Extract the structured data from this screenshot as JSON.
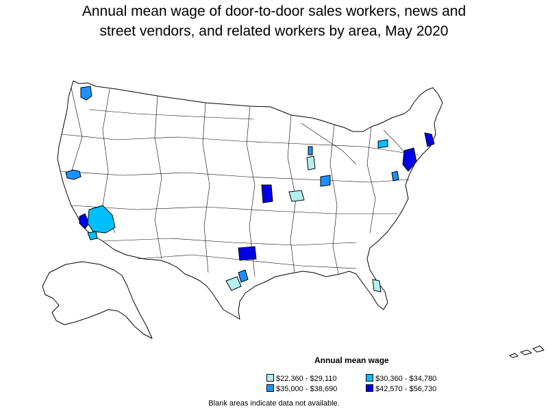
{
  "title_line1": "Annual mean wage of door-to-door sales workers, news and",
  "title_line2": "street vendors, and related workers by area, May 2020",
  "legend": {
    "title": "Annual mean wage",
    "items": [
      {
        "range": "$22,360 - $29,110",
        "color": "#b3f0f0"
      },
      {
        "range": "$30,360 - $34,780",
        "color": "#00bfff"
      },
      {
        "range": "$35,000 - $38,690",
        "color": "#1e90ff"
      },
      {
        "range": "$42,570 - $56,730",
        "color": "#0000e6"
      }
    ]
  },
  "note": "Blank areas indicate data not available.",
  "colors": {
    "tier1": "#b3f0f0",
    "tier2": "#00bfff",
    "tier3": "#1e90ff",
    "tier4": "#0000e6",
    "outline": "#000000",
    "background": "#ffffff"
  },
  "highlighted_areas": [
    {
      "area": "Seattle",
      "tier": 3
    },
    {
      "area": "San Francisco Bay Area",
      "tier": 3
    },
    {
      "area": "Los Angeles",
      "tier": 4
    },
    {
      "area": "Inland Empire",
      "tier": 2
    },
    {
      "area": "San Diego",
      "tier": 2
    },
    {
      "area": "Kansas City",
      "tier": 4
    },
    {
      "area": "Dallas",
      "tier": 4
    },
    {
      "area": "Austin",
      "tier": 3
    },
    {
      "area": "San Antonio",
      "tier": 1
    },
    {
      "area": "St. Louis",
      "tier": 1
    },
    {
      "area": "Chicago",
      "tier": 1
    },
    {
      "area": "Milwaukee",
      "tier": 3
    },
    {
      "area": "Indianapolis",
      "tier": 3
    },
    {
      "area": "Rochester",
      "tier": 2
    },
    {
      "area": "Boston",
      "tier": 4
    },
    {
      "area": "New York",
      "tier": 4
    },
    {
      "area": "Washington",
      "tier": 3
    },
    {
      "area": "Orlando",
      "tier": 1
    }
  ]
}
